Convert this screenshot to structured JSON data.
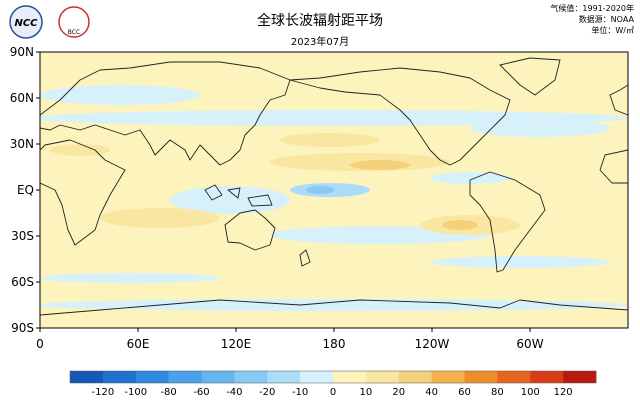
{
  "map": {
    "title": "全球长波辐射距平场",
    "subtitle": "2023年07月",
    "notes": [
      "气候值：1991-2020年",
      "数据源：NOAA",
      "单位：W/㎡"
    ],
    "logos": [
      "NCC",
      "BCC"
    ],
    "lat_labels": [
      "90N",
      "60N",
      "30N",
      "EQ",
      "30S",
      "60S",
      "90S"
    ],
    "lon_labels": [
      "0",
      "60E",
      "120E",
      "180",
      "120W",
      "60W"
    ],
    "colorbar": {
      "labels": [
        "-120",
        "-100",
        "-80",
        "-60",
        "-40",
        "-20",
        "-10",
        "0",
        "10",
        "20",
        "40",
        "60",
        "80",
        "100",
        "120"
      ],
      "colors": [
        "#1459b8",
        "#1f73d0",
        "#2f8ae0",
        "#4aa0ea",
        "#66b5f0",
        "#86c9f4",
        "#acdcf7",
        "#d6f1fa",
        "#fdf3bd",
        "#f9e6a0",
        "#f5d07a",
        "#f2b24e",
        "#ee8d2c",
        "#e6641e",
        "#d83c17",
        "#b81a12"
      ]
    }
  }
}
